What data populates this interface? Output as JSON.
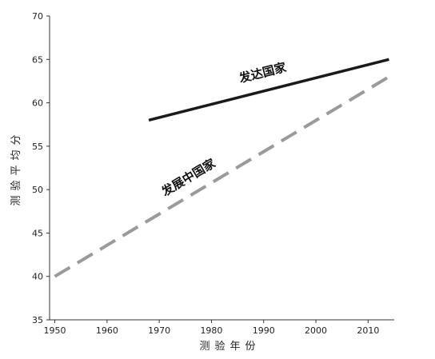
{
  "chart_data": {
    "type": "line",
    "title": "",
    "xlabel": "测验年份",
    "ylabel": "测验平均分",
    "xlim": [
      1949,
      2015
    ],
    "ylim": [
      35,
      70
    ],
    "x_ticks": [
      1950,
      1960,
      1970,
      1980,
      1990,
      2000,
      2010
    ],
    "y_ticks": [
      35,
      40,
      45,
      50,
      55,
      60,
      65,
      70
    ],
    "grid": false,
    "legend": "none",
    "series": [
      {
        "name": "发达国家",
        "style": "solid",
        "color": "#1a1a1a",
        "x": [
          1968,
          2014
        ],
        "y": [
          58,
          65
        ]
      },
      {
        "name": "发展中国家",
        "style": "dashed",
        "color": "#9a9a9a",
        "x": [
          1950,
          2014
        ],
        "y": [
          40,
          63
        ]
      }
    ]
  }
}
